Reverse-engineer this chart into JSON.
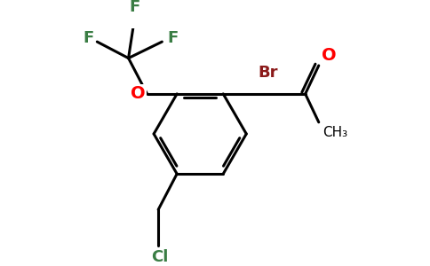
{
  "bg_color": "#ffffff",
  "bond_color": "#000000",
  "bond_width": 2.2,
  "atom_colors": {
    "F": "#3a7d44",
    "O": "#ff0000",
    "Cl": "#3a7d44",
    "Br": "#8b1a1a",
    "C": "#000000"
  },
  "figsize": [
    4.84,
    3.0
  ],
  "dpi": 100
}
